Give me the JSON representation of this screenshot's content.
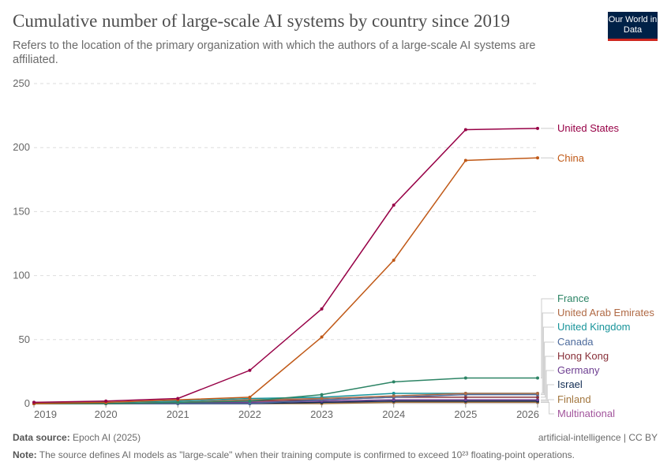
{
  "header": {
    "title": "Cumulative number of large-scale AI systems by country since 2019",
    "subtitle": "Refers to the location of the primary organization with which the authors of a large-scale AI systems are affiliated.",
    "logo": "Our World in Data"
  },
  "footer": {
    "source_label": "Data source:",
    "source": "Epoch AI (2025)",
    "license": "artificial-intelligence | CC BY",
    "note_label": "Note:",
    "note": "The source defines AI models as \"large-scale\" when their training compute is confirmed to exceed 10²³ floating-point operations."
  },
  "chart_data": {
    "type": "line",
    "x": [
      2019,
      2020,
      2021,
      2022,
      2023,
      2024,
      2025,
      2026
    ],
    "xticks": [
      "2019",
      "2020",
      "2021",
      "2022",
      "2023",
      "2024",
      "2025",
      "2026"
    ],
    "yticks": [
      "0",
      "50",
      "100",
      "150",
      "200",
      "250"
    ],
    "ylim": [
      0,
      250
    ],
    "grid": true,
    "legend": "right (line labels)",
    "series": [
      {
        "name": "United States",
        "color": "#970046",
        "values": [
          1,
          2,
          4,
          26,
          74,
          155,
          214,
          215
        ]
      },
      {
        "name": "China",
        "color": "#c05917",
        "values": [
          0,
          1,
          3,
          5,
          52,
          112,
          190,
          192
        ]
      },
      {
        "name": "France",
        "color": "#2c8465",
        "values": [
          0,
          0,
          1,
          2,
          7,
          17,
          20,
          20
        ]
      },
      {
        "name": "United Arab Emirates",
        "color": "#b06a45",
        "values": [
          0,
          0,
          1,
          3,
          4,
          6,
          8,
          8
        ]
      },
      {
        "name": "United Kingdom",
        "color": "#18949a",
        "values": [
          1,
          1,
          2,
          4,
          5,
          8,
          8,
          8
        ]
      },
      {
        "name": "Canada",
        "color": "#4c6a9c",
        "values": [
          0,
          0,
          0,
          0,
          3,
          5,
          7,
          7
        ]
      },
      {
        "name": "Hong Kong",
        "color": "#883039",
        "values": [
          0,
          0,
          1,
          2,
          3,
          5,
          5,
          5
        ]
      },
      {
        "name": "Germany",
        "color": "#6d3e91",
        "values": [
          0,
          0,
          1,
          1,
          2,
          3,
          3,
          3
        ]
      },
      {
        "name": "Israel",
        "color": "#102b52",
        "values": [
          0,
          0,
          0,
          0,
          1,
          2,
          2,
          2
        ]
      },
      {
        "name": "Finland",
        "color": "#a2763e",
        "values": [
          0,
          0,
          0,
          0,
          0,
          1,
          1,
          1
        ]
      },
      {
        "name": "Multinational",
        "color": "#a2559c",
        "values": [
          0,
          0,
          0,
          0,
          1,
          1,
          1,
          1
        ]
      }
    ]
  }
}
